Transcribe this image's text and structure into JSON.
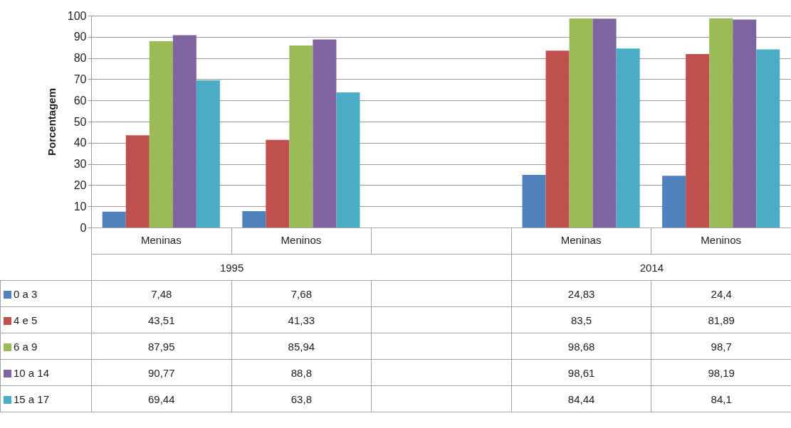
{
  "chart_data": {
    "type": "bar",
    "ylabel": "Porcentagem",
    "categories": [
      "Meninas",
      "Meninos",
      null,
      "Meninas",
      "Meninos"
    ],
    "series": [
      {
        "name": "0 a 3",
        "color": "#4f81bd",
        "values": [
          7.48,
          7.68,
          null,
          24.83,
          24.4
        ],
        "value_labels": [
          "7,48",
          "7,68",
          null,
          "24,83",
          "24,4"
        ]
      },
      {
        "name": "4 e 5",
        "color": "#c0504d",
        "values": [
          43.51,
          41.33,
          null,
          83.5,
          81.89
        ],
        "value_labels": [
          "43,51",
          "41,33",
          null,
          "83,5",
          "81,89"
        ]
      },
      {
        "name": "6 a 9",
        "color": "#9bbb59",
        "values": [
          87.95,
          85.94,
          null,
          98.68,
          98.7
        ],
        "value_labels": [
          "87,95",
          "85,94",
          null,
          "98,68",
          "98,7"
        ]
      },
      {
        "name": "10 a 14",
        "color": "#8064a2",
        "values": [
          90.77,
          88.8,
          null,
          98.61,
          98.19
        ],
        "value_labels": [
          "90,77",
          "88,8",
          null,
          "98,61",
          "98,19"
        ]
      },
      {
        "name": "15 a 17",
        "color": "#4bacc6",
        "values": [
          69.44,
          63.8,
          null,
          84.44,
          84.1
        ],
        "value_labels": [
          "69,44",
          "63,8",
          null,
          "84,44",
          "84,1"
        ]
      }
    ],
    "ylim": [
      0,
      100
    ],
    "yticks": [
      0,
      10,
      20,
      30,
      40,
      50,
      60,
      70,
      80,
      90,
      100
    ],
    "grid": "y",
    "legend": "bottom left",
    "annotations": [
      "1995",
      "2014"
    ]
  }
}
